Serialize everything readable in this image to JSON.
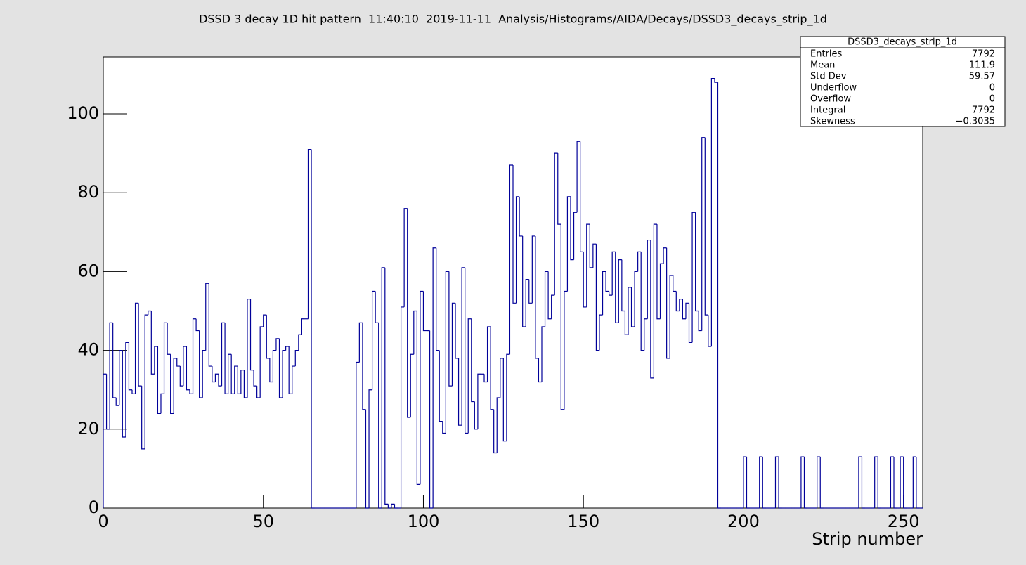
{
  "chart_data": {
    "type": "histogram",
    "title": "DSSD 3 decay 1D hit pattern  11:40:10  2019-11-11  Analysis/Histograms/AIDA/Decays/DSSD3_decays_strip_1d",
    "x_label": "Strip number",
    "color": "#000099",
    "bins": [
      0,
      1,
      2,
      3,
      4,
      5,
      6,
      7,
      8,
      9,
      10,
      11,
      12,
      13,
      14,
      15,
      16,
      17,
      18,
      19,
      20,
      21,
      22,
      23,
      24,
      25,
      26,
      27,
      28,
      29,
      30,
      31,
      32,
      33,
      34,
      35,
      36,
      37,
      38,
      39,
      40,
      41,
      42,
      43,
      44,
      45,
      46,
      47,
      48,
      49,
      50,
      51,
      52,
      53,
      54,
      55,
      56,
      57,
      58,
      59,
      60,
      61,
      62,
      63,
      64,
      65,
      66,
      67,
      68,
      69,
      70,
      71,
      72,
      73,
      74,
      75,
      76,
      77,
      78,
      79,
      80,
      81,
      82,
      83,
      84,
      85,
      86,
      87,
      88,
      89,
      90,
      91,
      92,
      93,
      94,
      95,
      96,
      97,
      98,
      99,
      100,
      101,
      102,
      103,
      104,
      105,
      106,
      107,
      108,
      109,
      110,
      111,
      112,
      113,
      114,
      115,
      116,
      117,
      118,
      119,
      120,
      121,
      122,
      123,
      124,
      125,
      126,
      127,
      128,
      129,
      130,
      131,
      132,
      133,
      134,
      135,
      136,
      137,
      138,
      139,
      140,
      141,
      142,
      143,
      144,
      145,
      146,
      147,
      148,
      149,
      150,
      151,
      152,
      153,
      154,
      155,
      156,
      157,
      158,
      159,
      160,
      161,
      162,
      163,
      164,
      165,
      166,
      167,
      168,
      169,
      170,
      171,
      172,
      173,
      174,
      175,
      176,
      177,
      178,
      179,
      180,
      181,
      182,
      183,
      184,
      185,
      186,
      187,
      188,
      189,
      190,
      191,
      192,
      193,
      194,
      195,
      196,
      197,
      198,
      199,
      200,
      201,
      202,
      203,
      204,
      205,
      206,
      207,
      208,
      209,
      210,
      211,
      212,
      213,
      214,
      215,
      216,
      217,
      218,
      219,
      220,
      221,
      222,
      223,
      224,
      225,
      226,
      227,
      228,
      229,
      230,
      231,
      232,
      233,
      234,
      235,
      236,
      237,
      238,
      239,
      240,
      241,
      242,
      243,
      244,
      245,
      246,
      247,
      248,
      249,
      250,
      251,
      252,
      253,
      254,
      255,
      256
    ],
    "values": [
      34,
      20,
      47,
      28,
      26,
      40,
      18,
      42,
      30,
      29,
      52,
      31,
      15,
      49,
      50,
      34,
      41,
      24,
      29,
      47,
      39,
      24,
      38,
      36,
      31,
      41,
      30,
      29,
      48,
      45,
      28,
      40,
      57,
      36,
      32,
      34,
      31,
      47,
      29,
      39,
      29,
      36,
      29,
      35,
      28,
      53,
      35,
      31,
      28,
      46,
      49,
      38,
      32,
      40,
      43,
      28,
      40,
      41,
      29,
      36,
      40,
      44,
      48,
      48,
      91,
      0,
      0,
      0,
      0,
      0,
      0,
      0,
      0,
      0,
      0,
      0,
      0,
      0,
      0,
      37,
      47,
      25,
      0,
      30,
      55,
      47,
      0,
      61,
      1,
      0,
      1,
      0,
      0,
      51,
      76,
      23,
      39,
      50,
      6,
      55,
      45,
      45,
      0,
      66,
      40,
      22,
      19,
      60,
      31,
      52,
      38,
      21,
      61,
      19,
      48,
      27,
      20,
      34,
      34,
      32,
      46,
      25,
      14,
      28,
      38,
      17,
      39,
      87,
      52,
      79,
      69,
      46,
      58,
      52,
      69,
      38,
      32,
      46,
      60,
      48,
      54,
      90,
      72,
      25,
      55,
      79,
      63,
      75,
      93,
      65,
      51,
      72,
      61,
      67,
      40,
      49,
      60,
      55,
      54,
      65,
      47,
      63,
      50,
      44,
      56,
      46,
      60,
      65,
      40,
      48,
      68,
      33,
      72,
      48,
      62,
      66,
      38,
      59,
      55,
      50,
      53,
      48,
      52,
      42,
      75,
      50,
      45,
      94,
      49,
      41,
      109,
      108,
      0,
      0,
      0,
      0,
      0,
      0,
      0,
      0,
      13,
      0,
      0,
      0,
      0,
      13,
      0,
      0,
      0,
      0,
      13,
      0,
      0,
      0,
      0,
      0,
      0,
      0,
      13,
      0,
      0,
      0,
      0,
      13,
      0,
      0,
      0,
      0,
      0,
      0,
      0,
      0,
      0,
      0,
      0,
      0,
      13,
      0,
      0,
      0,
      0,
      13,
      0,
      0,
      0,
      0,
      13,
      0,
      0,
      13,
      0,
      0,
      0,
      13,
      0,
      0
    ],
    "xlim": [
      0,
      256
    ],
    "xticks": [
      0,
      50,
      100,
      150,
      200,
      250
    ],
    "ylim": [
      0,
      114.45
    ],
    "yticks": [
      0,
      20,
      40,
      60,
      80,
      100
    ],
    "stats": {
      "title": "DSSD3_decays_strip_1d",
      "rows": [
        [
          "Entries",
          "7792"
        ],
        [
          "Mean",
          "111.9"
        ],
        [
          "Std Dev",
          "59.57"
        ],
        [
          "Underflow",
          "0"
        ],
        [
          "Overflow",
          "0"
        ],
        [
          "Integral",
          "7792"
        ],
        [
          "Skewness",
          "−0.3035"
        ]
      ]
    }
  }
}
